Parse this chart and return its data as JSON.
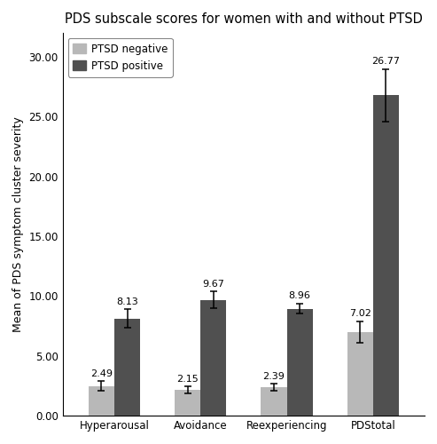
{
  "title": "PDS subscale scores for women with and without PTSD",
  "categories": [
    "Hyperarousal",
    "Avoidance",
    "Reexperiencing",
    "PDStotal"
  ],
  "negative_values": [
    2.49,
    2.15,
    2.39,
    7.02
  ],
  "positive_values": [
    8.13,
    9.67,
    8.96,
    26.77
  ],
  "negative_errors": [
    0.4,
    0.3,
    0.28,
    0.9
  ],
  "positive_errors": [
    0.8,
    0.7,
    0.42,
    2.2
  ],
  "negative_label": "PTSD negative",
  "positive_label": "PTSD positive",
  "negative_color": "#b8b8b8",
  "positive_color": "#505050",
  "ylabel": "Mean of PDS symptom cluster severity",
  "ylim": [
    0,
    32
  ],
  "yticks": [
    0.0,
    5.0,
    10.0,
    15.0,
    20.0,
    25.0,
    30.0
  ],
  "bar_width": 0.3,
  "title_fontsize": 10.5,
  "axis_label_fontsize": 9,
  "tick_fontsize": 8.5,
  "legend_fontsize": 8.5,
  "value_label_fontsize": 8,
  "background_color": "#ffffff"
}
